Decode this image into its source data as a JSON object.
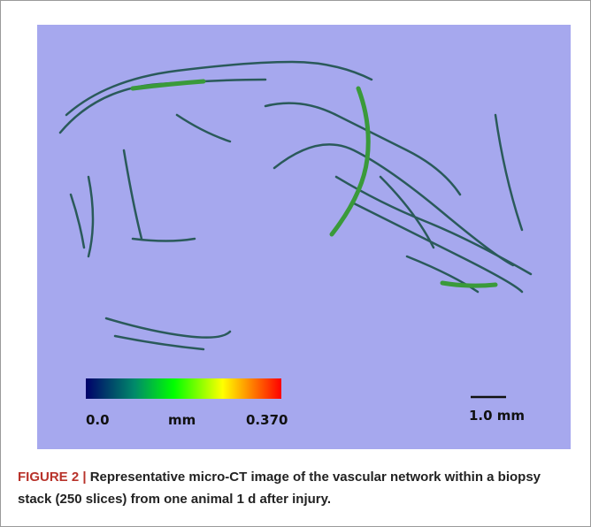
{
  "figure": {
    "colorbar": {
      "min_label": "0.0",
      "unit_label": "mm",
      "max_label": "0.370"
    },
    "scale_bar": {
      "label": "1.0 mm"
    },
    "caption": {
      "label": "FIGURE 2 |",
      "text": "Representative micro-CT image of the vascular network within a biopsy stack (250 slices) from one animal 1 d after injury."
    }
  }
}
